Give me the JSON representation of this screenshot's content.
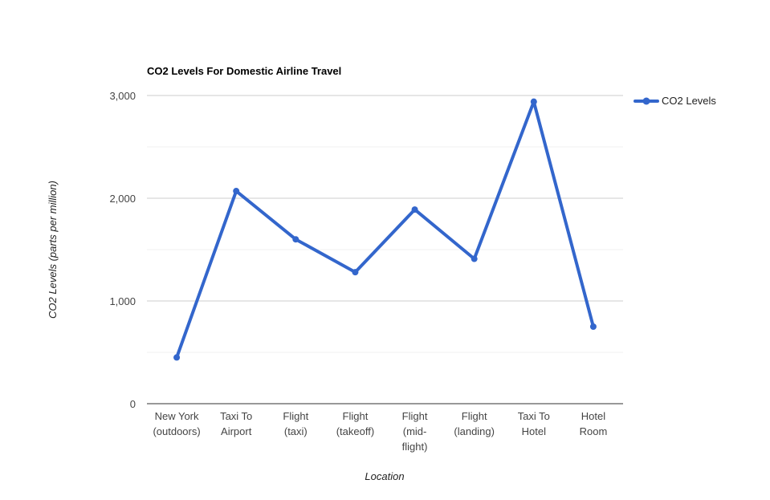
{
  "chart_data": {
    "type": "line",
    "title": "CO2 Levels For Domestic Airline Travel",
    "xlabel": "Location",
    "ylabel": "CO2 Levels (parts per million)",
    "categories": [
      [
        "New York",
        "(outdoors)"
      ],
      [
        "Taxi To",
        "Airport"
      ],
      [
        "Flight",
        "(taxi)"
      ],
      [
        "Flight",
        "(takeoff)"
      ],
      [
        "Flight",
        "(mid-",
        "flight)"
      ],
      [
        "Flight",
        "(landing)"
      ],
      [
        "Taxi To",
        "Hotel"
      ],
      [
        "Hotel",
        "Room"
      ]
    ],
    "series": [
      {
        "name": "CO2 Levels",
        "color": "#3366cc",
        "values": [
          450,
          2070,
          1600,
          1280,
          1890,
          1410,
          2940,
          750
        ]
      }
    ],
    "ylim": [
      0,
      3000
    ],
    "yticks": [
      0,
      1000,
      2000,
      3000
    ],
    "ytick_labels": [
      "0",
      "1,000",
      "2,000",
      "3,000"
    ],
    "minor_gridlines": [
      500,
      1500,
      2500
    ],
    "grid": true,
    "legend_position": "right"
  }
}
